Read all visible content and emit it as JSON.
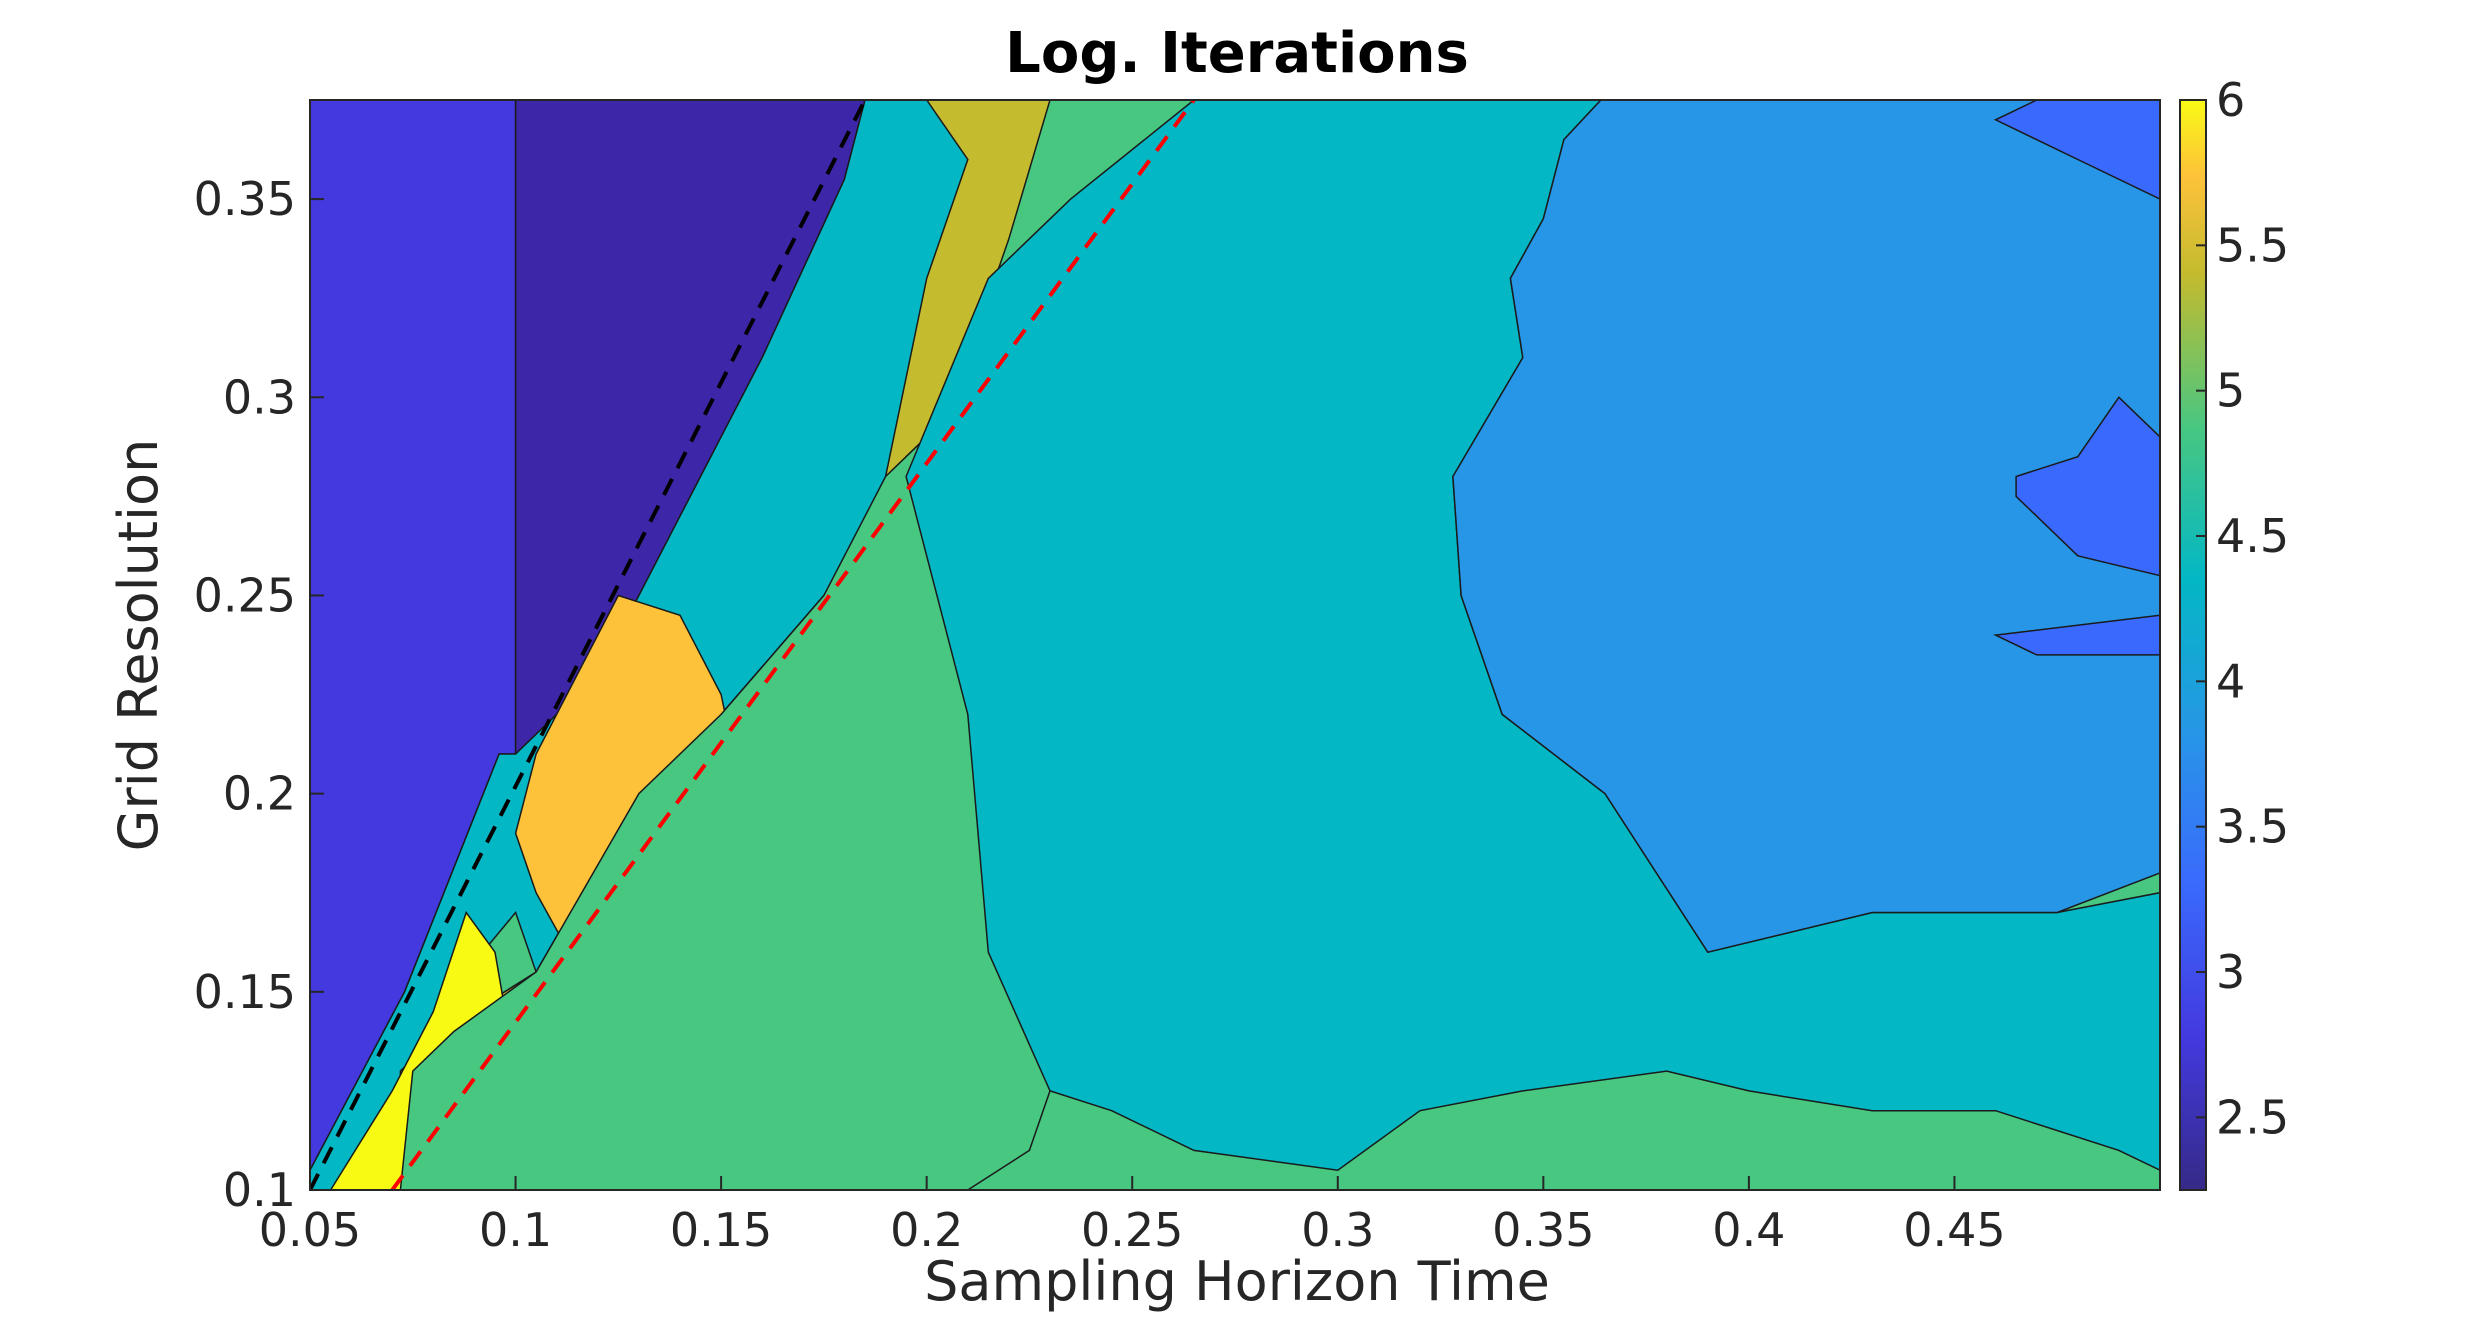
{
  "chart_data": {
    "type": "heatmap",
    "title": "Log. Iterations",
    "xlabel": "Sampling Horizon Time",
    "ylabel": "Grid Resolution",
    "xlim": [
      0.05,
      0.5
    ],
    "ylim": [
      0.1,
      0.375
    ],
    "x_ticks": [
      0.05,
      0.1,
      0.15,
      0.2,
      0.25,
      0.3,
      0.35,
      0.4,
      0.45
    ],
    "x_tick_labels": [
      "0.05",
      "0.1",
      "0.15",
      "0.2",
      "0.25",
      "0.3",
      "0.35",
      "0.4",
      "0.45"
    ],
    "y_ticks": [
      0.1,
      0.15,
      0.2,
      0.25,
      0.3,
      0.35
    ],
    "y_tick_labels": [
      "0.1",
      "0.15",
      "0.2",
      "0.25",
      "0.3",
      "0.35"
    ],
    "colorbar": {
      "range": [
        2.25,
        6
      ],
      "ticks": [
        2.5,
        3,
        3.5,
        4,
        4.5,
        5,
        5.5,
        6
      ],
      "tick_labels": [
        "2.5",
        "3",
        "3.5",
        "4",
        "4.5",
        "5",
        "5.5",
        "6"
      ],
      "colormap": "parula"
    },
    "levels": [
      {
        "level": 2.25,
        "color": "#3E26A8"
      },
      {
        "level": 2.75,
        "color": "#4339DF"
      },
      {
        "level": 3.25,
        "color": "#3A6AFD"
      },
      {
        "level": 3.75,
        "color": "#2796E6"
      },
      {
        "level": 4.25,
        "color": "#03B7C5"
      },
      {
        "level": 4.75,
        "color": "#48C781"
      },
      {
        "level": 5.25,
        "color": "#C4BB2E"
      },
      {
        "level": 5.75,
        "color": "#FDC23A"
      },
      {
        "level": 6.0,
        "color": "#F9FA14"
      }
    ],
    "regions": [
      {
        "level": 2.75,
        "points": [
          [
            0.05,
            0.105
          ],
          [
            0.05,
            0.375
          ],
          [
            0.1,
            0.375
          ],
          [
            0.1,
            0.21
          ],
          [
            0.096,
            0.21
          ],
          [
            0.073,
            0.15
          ]
        ]
      },
      {
        "level": 2.25,
        "points": [
          [
            0.1,
            0.375
          ],
          [
            0.185,
            0.375
          ],
          [
            0.18,
            0.355
          ],
          [
            0.16,
            0.31
          ],
          [
            0.14,
            0.27
          ],
          [
            0.12,
            0.23
          ],
          [
            0.1,
            0.21
          ]
        ]
      },
      {
        "level": 4.25,
        "points": [
          [
            0.2,
            0.375
          ],
          [
            0.232,
            0.375
          ],
          [
            0.222,
            0.34
          ],
          [
            0.205,
            0.295
          ],
          [
            0.195,
            0.285
          ],
          [
            0.175,
            0.25
          ],
          [
            0.15,
            0.22
          ],
          [
            0.13,
            0.2
          ],
          [
            0.105,
            0.155
          ],
          [
            0.1,
            0.17
          ],
          [
            0.08,
            0.145
          ],
          [
            0.07,
            0.12
          ],
          [
            0.06,
            0.1
          ],
          [
            0.05,
            0.1
          ],
          [
            0.05,
            0.105
          ],
          [
            0.073,
            0.15
          ],
          [
            0.096,
            0.21
          ],
          [
            0.1,
            0.21
          ],
          [
            0.12,
            0.23
          ],
          [
            0.14,
            0.27
          ],
          [
            0.16,
            0.31
          ],
          [
            0.18,
            0.355
          ],
          [
            0.185,
            0.375
          ]
        ]
      },
      {
        "level": 5.25,
        "points": [
          [
            0.185,
            0.375
          ],
          [
            0.232,
            0.375
          ],
          [
            0.222,
            0.34
          ],
          [
            0.205,
            0.295
          ],
          [
            0.195,
            0.285
          ],
          [
            0.175,
            0.25
          ],
          [
            0.15,
            0.22
          ],
          [
            0.13,
            0.2
          ],
          [
            0.105,
            0.155
          ],
          [
            0.082,
            0.14
          ],
          [
            0.072,
            0.13
          ],
          [
            0.072,
            0.1
          ],
          [
            0.15,
            0.1
          ],
          [
            0.17,
            0.115
          ],
          [
            0.185,
            0.14
          ],
          [
            0.2,
            0.17
          ],
          [
            0.21,
            0.22
          ],
          [
            0.19,
            0.28
          ],
          [
            0.2,
            0.33
          ],
          [
            0.21,
            0.36
          ],
          [
            0.2,
            0.375
          ]
        ]
      },
      {
        "level": 5.75,
        "points": [
          [
            0.125,
            0.25
          ],
          [
            0.14,
            0.245
          ],
          [
            0.15,
            0.225
          ],
          [
            0.155,
            0.2
          ],
          [
            0.145,
            0.18
          ],
          [
            0.13,
            0.165
          ],
          [
            0.115,
            0.155
          ],
          [
            0.105,
            0.145
          ],
          [
            0.095,
            0.135
          ],
          [
            0.09,
            0.13
          ],
          [
            0.09,
            0.115
          ],
          [
            0.085,
            0.1
          ],
          [
            0.115,
            0.1
          ],
          [
            0.128,
            0.11
          ],
          [
            0.132,
            0.125
          ],
          [
            0.125,
            0.14
          ],
          [
            0.113,
            0.16
          ],
          [
            0.105,
            0.175
          ],
          [
            0.1,
            0.19
          ],
          [
            0.105,
            0.21
          ],
          [
            0.115,
            0.23
          ]
        ]
      },
      {
        "level": 6.0,
        "points": [
          [
            0.055,
            0.1
          ],
          [
            0.07,
            0.125
          ],
          [
            0.08,
            0.145
          ],
          [
            0.088,
            0.17
          ],
          [
            0.095,
            0.16
          ],
          [
            0.1,
            0.13
          ],
          [
            0.092,
            0.12
          ],
          [
            0.09,
            0.1
          ]
        ]
      },
      {
        "level": 4.75,
        "points": [
          [
            0.2,
            0.375
          ],
          [
            0.23,
            0.375
          ],
          [
            0.22,
            0.34
          ],
          [
            0.205,
            0.295
          ],
          [
            0.19,
            0.28
          ],
          [
            0.175,
            0.25
          ],
          [
            0.15,
            0.22
          ],
          [
            0.13,
            0.2
          ],
          [
            0.105,
            0.155
          ],
          [
            0.085,
            0.14
          ],
          [
            0.075,
            0.13
          ],
          [
            0.072,
            0.1
          ],
          [
            0.21,
            0.1
          ],
          [
            0.225,
            0.11
          ],
          [
            0.23,
            0.125
          ],
          [
            0.24,
            0.14
          ],
          [
            0.255,
            0.16
          ],
          [
            0.27,
            0.17
          ],
          [
            0.285,
            0.175
          ],
          [
            0.29,
            0.2
          ],
          [
            0.29,
            0.22
          ],
          [
            0.3,
            0.25
          ],
          [
            0.305,
            0.27
          ],
          [
            0.31,
            0.3
          ],
          [
            0.3,
            0.32
          ],
          [
            0.29,
            0.35
          ],
          [
            0.28,
            0.375
          ]
        ]
      },
      {
        "level": 4.25,
        "points": [
          [
            0.265,
            0.375
          ],
          [
            0.364,
            0.375
          ],
          [
            0.355,
            0.365
          ],
          [
            0.35,
            0.345
          ],
          [
            0.342,
            0.33
          ],
          [
            0.345,
            0.31
          ],
          [
            0.328,
            0.28
          ],
          [
            0.33,
            0.25
          ],
          [
            0.34,
            0.22
          ],
          [
            0.365,
            0.2
          ],
          [
            0.39,
            0.16
          ],
          [
            0.43,
            0.17
          ],
          [
            0.475,
            0.17
          ],
          [
            0.5,
            0.175
          ],
          [
            0.5,
            0.105
          ],
          [
            0.49,
            0.11
          ],
          [
            0.46,
            0.12
          ],
          [
            0.43,
            0.12
          ],
          [
            0.4,
            0.125
          ],
          [
            0.38,
            0.13
          ],
          [
            0.345,
            0.125
          ],
          [
            0.32,
            0.12
          ],
          [
            0.3,
            0.105
          ],
          [
            0.265,
            0.11
          ],
          [
            0.245,
            0.12
          ],
          [
            0.23,
            0.125
          ],
          [
            0.215,
            0.16
          ],
          [
            0.21,
            0.22
          ],
          [
            0.195,
            0.28
          ],
          [
            0.215,
            0.33
          ],
          [
            0.235,
            0.35
          ]
        ]
      },
      {
        "level": 3.75,
        "points": [
          [
            0.364,
            0.375
          ],
          [
            0.5,
            0.375
          ],
          [
            0.5,
            0.18
          ],
          [
            0.475,
            0.17
          ],
          [
            0.43,
            0.17
          ],
          [
            0.39,
            0.16
          ],
          [
            0.365,
            0.2
          ],
          [
            0.34,
            0.22
          ],
          [
            0.33,
            0.25
          ],
          [
            0.328,
            0.28
          ],
          [
            0.345,
            0.31
          ],
          [
            0.342,
            0.33
          ],
          [
            0.35,
            0.345
          ],
          [
            0.355,
            0.365
          ]
        ]
      },
      {
        "level": 3.25,
        "points": [
          [
            0.47,
            0.375
          ],
          [
            0.5,
            0.375
          ],
          [
            0.5,
            0.35
          ],
          [
            0.48,
            0.36
          ],
          [
            0.46,
            0.37
          ]
        ]
      },
      {
        "level": 3.25,
        "points": [
          [
            0.465,
            0.28
          ],
          [
            0.48,
            0.285
          ],
          [
            0.49,
            0.3
          ],
          [
            0.5,
            0.29
          ],
          [
            0.5,
            0.255
          ],
          [
            0.48,
            0.26
          ],
          [
            0.465,
            0.275
          ]
        ]
      },
      {
        "level": 3.25,
        "points": [
          [
            0.46,
            0.24
          ],
          [
            0.5,
            0.245
          ],
          [
            0.5,
            0.235
          ],
          [
            0.47,
            0.235
          ]
        ]
      }
    ],
    "boundary_lines": [
      {
        "name": "black-dashed",
        "color": "#000000",
        "dash": "dash",
        "points": [
          [
            0.05,
            0.1
          ],
          [
            0.185,
            0.375
          ]
        ]
      },
      {
        "name": "red-dashed",
        "color": "#FF0000",
        "dash": "dash",
        "points": [
          [
            0.07,
            0.1
          ],
          [
            0.265,
            0.375
          ]
        ]
      }
    ]
  }
}
